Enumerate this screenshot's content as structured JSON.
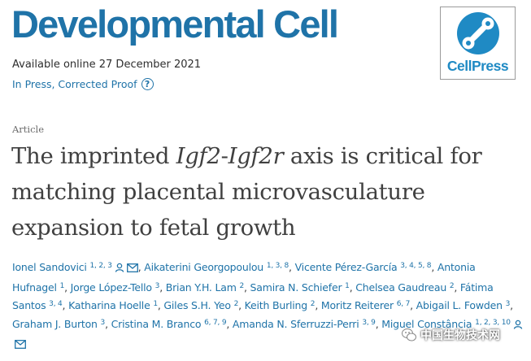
{
  "journal": {
    "name": "Developmental Cell",
    "available_online": "Available online 27 December 2021",
    "status": "In Press, Corrected Proof",
    "publisher_logo_text": "CellPress"
  },
  "article": {
    "type": "Article",
    "title_parts": [
      "The imprinted ",
      "Igf2",
      "-",
      "Igf2r",
      " axis is critical for matching placental microvasculature expansion to fetal growth"
    ]
  },
  "authors": [
    {
      "name": "Ionel Sandovici",
      "sup": "1, 2, 3",
      "icons": [
        "person-icon",
        "email-icon"
      ]
    },
    {
      "name": "Aikaterini Georgopoulou",
      "sup": "1, 3, 8",
      "icons": []
    },
    {
      "name": "Vicente Pérez-García",
      "sup": "3, 4, 5, 8",
      "icons": []
    },
    {
      "name": "Antonia Hufnagel",
      "sup": "1",
      "icons": []
    },
    {
      "name": "Jorge López-Tello",
      "sup": "3",
      "icons": []
    },
    {
      "name": "Brian Y.H. Lam",
      "sup": "2",
      "icons": []
    },
    {
      "name": "Samira N. Schiefer",
      "sup": "1",
      "icons": []
    },
    {
      "name": "Chelsea Gaudreau",
      "sup": "2",
      "icons": []
    },
    {
      "name": "Fátima Santos",
      "sup": "3, 4",
      "icons": []
    },
    {
      "name": "Katharina Hoelle",
      "sup": "1",
      "icons": []
    },
    {
      "name": "Giles S.H. Yeo",
      "sup": "2",
      "icons": []
    },
    {
      "name": "Keith Burling",
      "sup": "2",
      "icons": []
    },
    {
      "name": "Moritz Reiterer",
      "sup": "6, 7",
      "icons": []
    },
    {
      "name": "Abigail L. Fowden",
      "sup": "3",
      "icons": []
    },
    {
      "name": "Graham J. Burton",
      "sup": "3",
      "icons": []
    },
    {
      "name": "Cristina M. Branco",
      "sup": "6, 7, 9",
      "icons": []
    },
    {
      "name": "Amanda N. Sferruzzi-Perri",
      "sup": "3, 9",
      "icons": []
    },
    {
      "name": "Miguel Constância",
      "sup": "1, 2, 3, 10",
      "icons": [
        "person-icon",
        "email-icon"
      ]
    }
  ],
  "watermark": {
    "text": "中国生物技术网"
  },
  "colors": {
    "link": "#1f73a8",
    "title": "#404040",
    "logo": "#1f8ac4"
  }
}
